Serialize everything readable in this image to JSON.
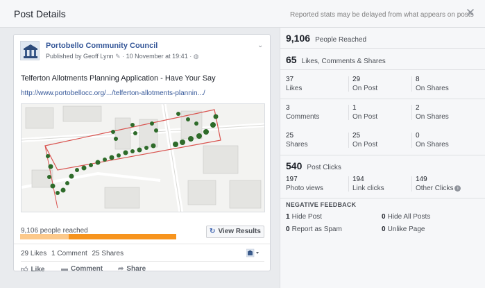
{
  "header": {
    "title": "Post Details",
    "note": "Reported stats may be delayed from what appears on posts",
    "close_icon": "close-icon"
  },
  "post": {
    "page_name": "Portobello Community Council",
    "published_by": "Published by Geoff Lynn",
    "date": "10 November at 19:41",
    "message": "Telferton Allotments Planning Application - Have Your Say",
    "link": "http://www.portobellocc.org/.../telferton-allotments-plannin.../",
    "reached_text": "9,106 people reached",
    "reach_bar": {
      "organic_fraction": 0.31,
      "paid_fraction": 0.69,
      "organic_color": "#fcc98b",
      "paid_color": "#f7941e"
    },
    "view_results": "View Results",
    "likes": "29 Likes",
    "comments": "1 Comment",
    "shares": "25 Shares",
    "actions": {
      "like": "Like",
      "comment": "Comment",
      "share": "Share"
    }
  },
  "stats": {
    "reached": {
      "value": "9,106",
      "label": "People Reached"
    },
    "engagement": {
      "value": "65",
      "label": "Likes, Comments & Shares"
    },
    "likes_row": [
      {
        "value": "37",
        "label": "Likes"
      },
      {
        "value": "29",
        "label": "On Post"
      },
      {
        "value": "8",
        "label": "On Shares"
      }
    ],
    "comments_row": [
      {
        "value": "3",
        "label": "Comments"
      },
      {
        "value": "1",
        "label": "On Post"
      },
      {
        "value": "2",
        "label": "On Shares"
      }
    ],
    "shares_row": [
      {
        "value": "25",
        "label": "Shares"
      },
      {
        "value": "25",
        "label": "On Post"
      },
      {
        "value": "0",
        "label": "On Shares"
      }
    ],
    "clicks": {
      "value": "540",
      "label": "Post Clicks"
    },
    "clicks_row": [
      {
        "value": "197",
        "label": "Photo views"
      },
      {
        "value": "194",
        "label": "Link clicks"
      },
      {
        "value": "149",
        "label": "Other Clicks"
      }
    ],
    "negative": {
      "title": "NEGATIVE FEEDBACK",
      "items": [
        {
          "value": "1",
          "label": "Hide Post"
        },
        {
          "value": "0",
          "label": "Hide All Posts"
        },
        {
          "value": "0",
          "label": "Report as Spam"
        },
        {
          "value": "0",
          "label": "Unlike Page"
        }
      ]
    }
  },
  "colors": {
    "link": "#365899",
    "accent": "#4267b2"
  }
}
